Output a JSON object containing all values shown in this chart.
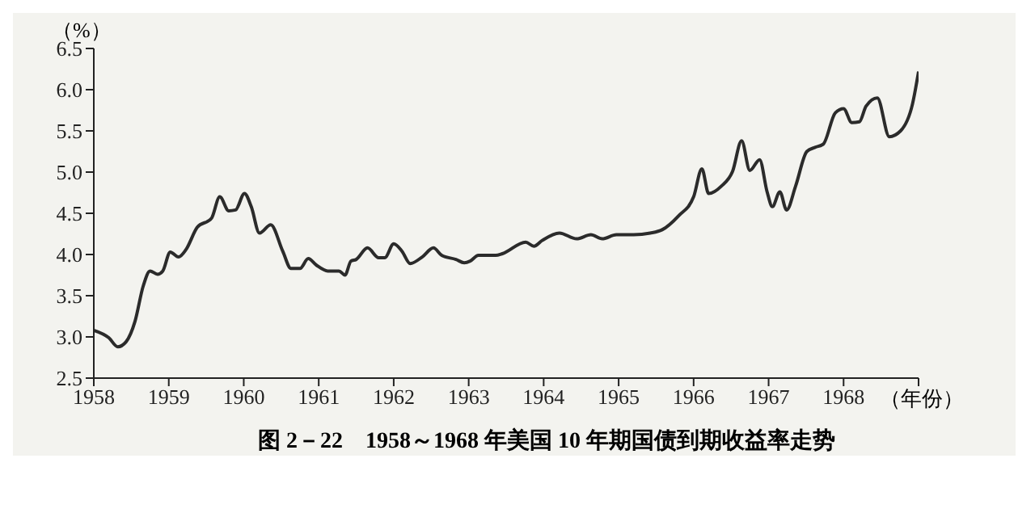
{
  "chart_data": {
    "type": "line",
    "title": "图 2－22　1958～1968 年美国 10 年期国债到期收益率走势",
    "xlabel": "（年份）",
    "ylabel": "（%）",
    "series": [
      {
        "color": "#2b2b2b",
        "x": [
          1958.0,
          1958.2,
          1958.32,
          1958.43,
          1958.55,
          1958.66,
          1958.75,
          1958.85,
          1958.92,
          1959.02,
          1959.13,
          1959.23,
          1959.38,
          1959.57,
          1959.68,
          1959.8,
          1959.89,
          1960.01,
          1960.1,
          1960.21,
          1960.36,
          1960.52,
          1960.63,
          1960.75,
          1960.86,
          1960.97,
          1961.12,
          1961.27,
          1961.35,
          1961.43,
          1961.5,
          1961.65,
          1961.8,
          1961.88,
          1962.0,
          1962.11,
          1962.22,
          1962.38,
          1962.53,
          1962.64,
          1962.83,
          1962.94,
          1963.02,
          1963.13,
          1963.36,
          1963.45,
          1963.76,
          1963.87,
          1963.98,
          1964.21,
          1964.44,
          1964.63,
          1964.78,
          1964.97,
          1965.2,
          1965.42,
          1965.58,
          1965.8,
          1966.0,
          1966.11,
          1966.2,
          1966.37,
          1966.52,
          1966.64,
          1966.75,
          1966.88,
          1966.98,
          1967.05,
          1967.15,
          1967.24,
          1967.36,
          1967.51,
          1967.62,
          1967.73,
          1967.89,
          1968.0,
          1968.11,
          1968.21,
          1968.3,
          1968.45,
          1968.61,
          1968.76,
          1968.92,
          1969.0
        ],
        "values": [
          3.08,
          2.99,
          2.88,
          2.94,
          3.19,
          3.62,
          3.8,
          3.76,
          3.8,
          4.03,
          3.97,
          4.06,
          4.33,
          4.44,
          4.7,
          4.53,
          4.54,
          4.74,
          4.58,
          4.26,
          4.36,
          4.04,
          3.83,
          3.83,
          3.95,
          3.87,
          3.8,
          3.8,
          3.75,
          3.92,
          3.94,
          4.08,
          3.96,
          3.96,
          4.13,
          4.04,
          3.89,
          3.97,
          4.08,
          3.99,
          3.94,
          3.9,
          3.92,
          3.99,
          3.99,
          4.01,
          4.15,
          4.1,
          4.17,
          4.26,
          4.19,
          4.24,
          4.19,
          4.24,
          4.24,
          4.26,
          4.3,
          4.47,
          4.7,
          5.04,
          4.74,
          4.83,
          5.01,
          5.38,
          5.02,
          5.15,
          4.76,
          4.58,
          4.76,
          4.54,
          4.83,
          5.25,
          5.3,
          5.34,
          5.72,
          5.77,
          5.6,
          5.61,
          5.8,
          5.9,
          5.43,
          5.5,
          5.83,
          6.22
        ]
      }
    ],
    "xlim": [
      1958,
      1969
    ],
    "xticks": [
      1958,
      1959,
      1960,
      1961,
      1962,
      1963,
      1964,
      1965,
      1966,
      1967,
      1968,
      {
        "value": 1969,
        "label": null
      }
    ],
    "ylim": [
      2.5,
      6.5
    ],
    "yticks": [
      2.5,
      {
        "value": 3,
        "label": "3.0"
      },
      3.5,
      {
        "value": 4,
        "label": "4.0"
      },
      4.5,
      {
        "value": 5,
        "label": "5.0"
      },
      5.5,
      {
        "value": 6,
        "label": "6.0"
      },
      6.5
    ],
    "grid": false,
    "legend": false,
    "marker": "none",
    "line_style": "solid"
  }
}
